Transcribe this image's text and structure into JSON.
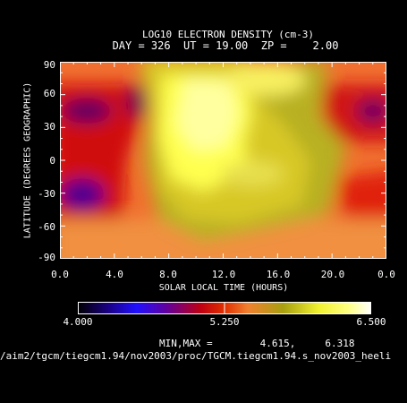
{
  "chart_data": {
    "type": "heatmap",
    "title": "LOG10 ELECTRON DENSITY (cm-3)",
    "subtitle": "DAY = 326  UT = 19.00  ZP =    2.00",
    "xlabel": "SOLAR LOCAL TIME (HOURS)",
    "ylabel": "LATITUDE (DEGREES GEOGRAPHIC)",
    "xlim": [
      0,
      24
    ],
    "ylim": [
      -90,
      90
    ],
    "x_tick_labels": [
      "0.0",
      "4.0",
      "8.0",
      "12.0",
      "16.0",
      "20.0",
      "0.0"
    ],
    "y_tick_labels": [
      "90",
      "60",
      "30",
      "0",
      "-30",
      "-60",
      "-90"
    ],
    "colorbar": {
      "min_label": "4.000",
      "mid_label": "5.250",
      "max_label": "6.500",
      "range": [
        4.0,
        6.5
      ]
    },
    "minmax_text": "MIN,MAX =        4.615,     6.318",
    "file_path": "/aim2/tgcm/tiegcm1.94/nov2003/proc/TGCM.tiegcm1.94.s_nov2003_heeli",
    "min": 4.615,
    "max": 6.318
  }
}
